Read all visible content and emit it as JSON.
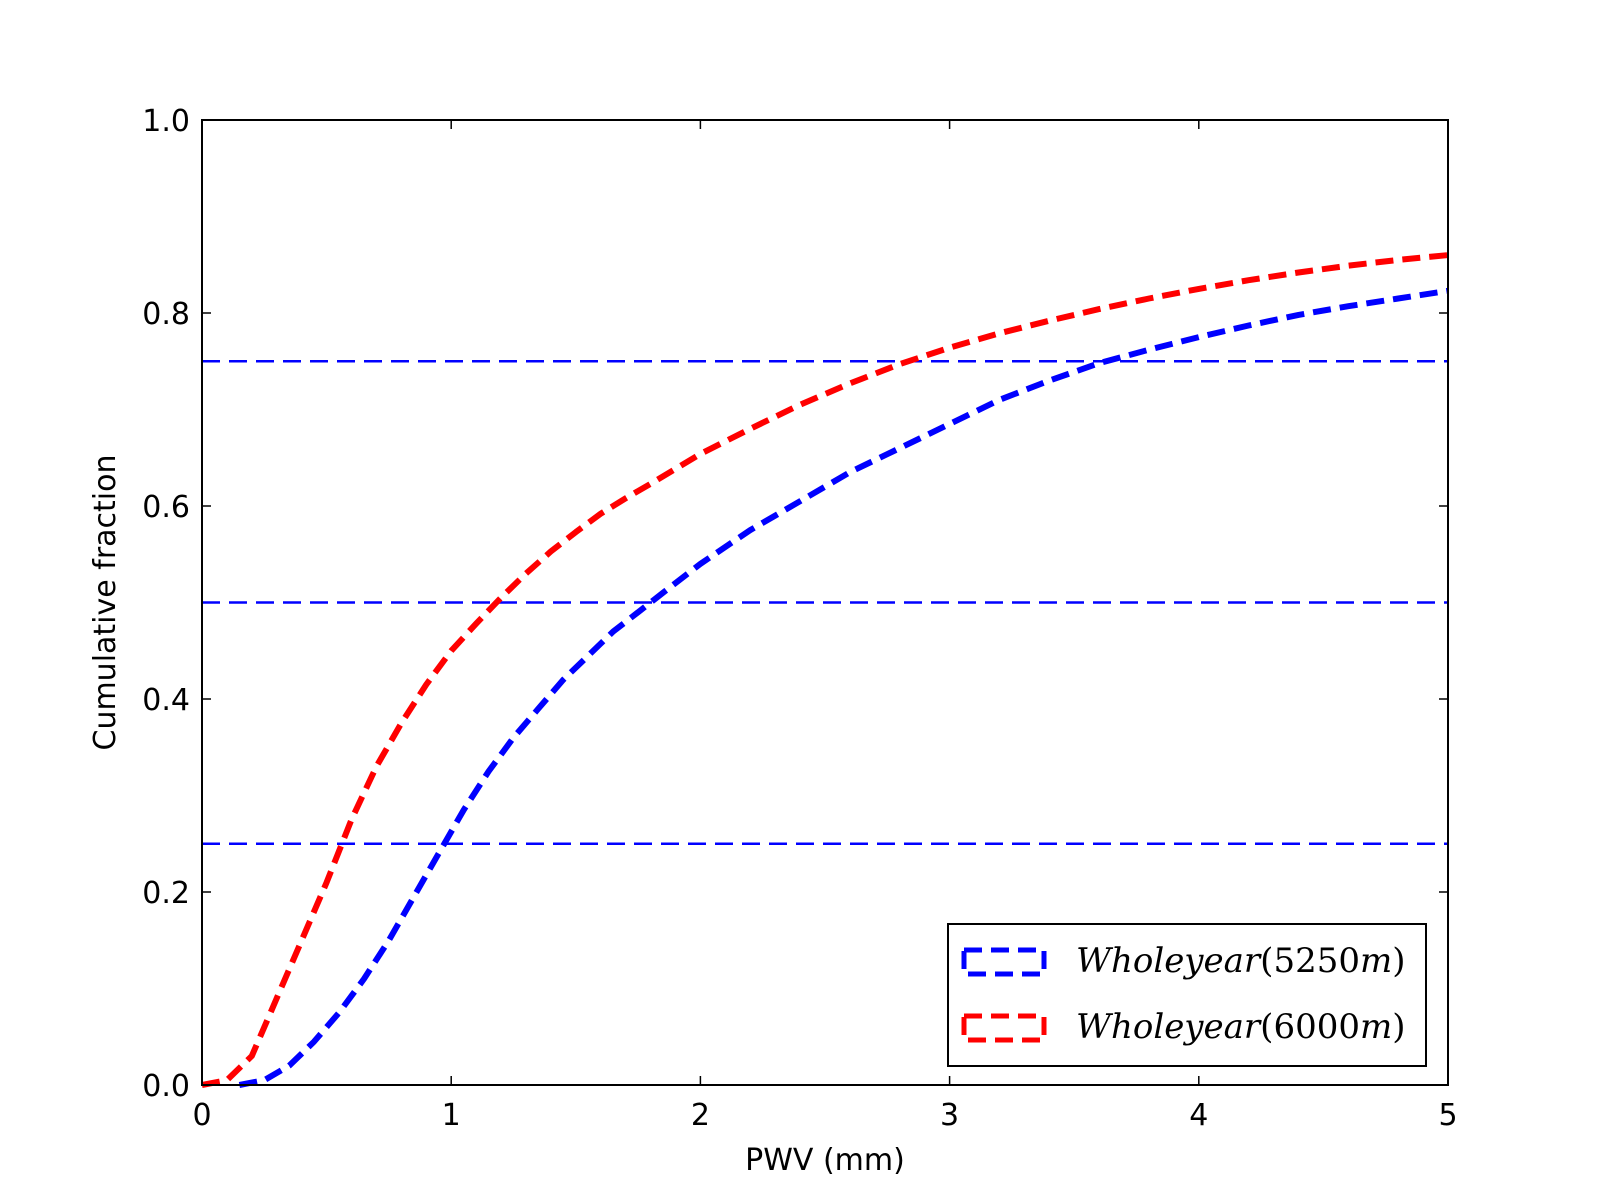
{
  "chart_data": {
    "type": "line",
    "title": "",
    "xlabel": "PWV (mm)",
    "ylabel": "Cumulative fraction",
    "xlim": [
      0,
      5
    ],
    "ylim": [
      0.0,
      1.0
    ],
    "x_ticks": [
      "0",
      "1",
      "2",
      "3",
      "4",
      "5"
    ],
    "y_ticks": [
      "0.0",
      "0.2",
      "0.4",
      "0.6",
      "0.8",
      "1.0"
    ],
    "grid": false,
    "legend_position": "lower-right",
    "reference_lines": [
      {
        "y": 0.25,
        "color": "#0000ff",
        "style": "dashed"
      },
      {
        "y": 0.5,
        "color": "#0000ff",
        "style": "dashed"
      },
      {
        "y": 0.75,
        "color": "#0000ff",
        "style": "dashed"
      }
    ],
    "series": [
      {
        "name": "$Whole year(5250m)$",
        "legend_label": {
          "word": "Wholeyear",
          "open": "(",
          "number": "5250",
          "unit": "m",
          "close": ")"
        },
        "color": "#0000ff",
        "style": "dashed",
        "x": [
          0.15,
          0.25,
          0.35,
          0.45,
          0.55,
          0.65,
          0.75,
          0.85,
          0.95,
          1.05,
          1.15,
          1.25,
          1.35,
          1.45,
          1.55,
          1.65,
          1.75,
          1.85,
          2.0,
          2.2,
          2.4,
          2.6,
          2.8,
          3.0,
          3.2,
          3.4,
          3.6,
          3.8,
          4.0,
          4.2,
          4.4,
          4.6,
          4.8,
          5.0
        ],
        "y": [
          0.0,
          0.005,
          0.02,
          0.045,
          0.075,
          0.11,
          0.15,
          0.195,
          0.24,
          0.285,
          0.325,
          0.36,
          0.39,
          0.42,
          0.445,
          0.47,
          0.49,
          0.51,
          0.54,
          0.575,
          0.605,
          0.635,
          0.66,
          0.685,
          0.71,
          0.73,
          0.748,
          0.762,
          0.775,
          0.787,
          0.798,
          0.807,
          0.815,
          0.823
        ]
      },
      {
        "name": "$Whole year(6000m)$",
        "legend_label": {
          "word": "Wholeyear",
          "open": "(",
          "number": "6000",
          "unit": "m",
          "close": ")"
        },
        "color": "#ff0000",
        "style": "dashed",
        "x": [
          0.0,
          0.1,
          0.2,
          0.3,
          0.4,
          0.5,
          0.6,
          0.7,
          0.8,
          0.9,
          1.0,
          1.1,
          1.2,
          1.3,
          1.4,
          1.5,
          1.6,
          1.7,
          1.8,
          2.0,
          2.2,
          2.4,
          2.6,
          2.8,
          3.0,
          3.2,
          3.4,
          3.6,
          3.8,
          4.0,
          4.2,
          4.4,
          4.6,
          4.8,
          5.0
        ],
        "y": [
          0.0,
          0.005,
          0.03,
          0.09,
          0.15,
          0.21,
          0.275,
          0.33,
          0.375,
          0.415,
          0.45,
          0.478,
          0.505,
          0.53,
          0.553,
          0.573,
          0.592,
          0.608,
          0.623,
          0.654,
          0.68,
          0.705,
          0.727,
          0.747,
          0.764,
          0.779,
          0.792,
          0.804,
          0.815,
          0.825,
          0.834,
          0.842,
          0.849,
          0.855,
          0.86
        ]
      }
    ]
  }
}
